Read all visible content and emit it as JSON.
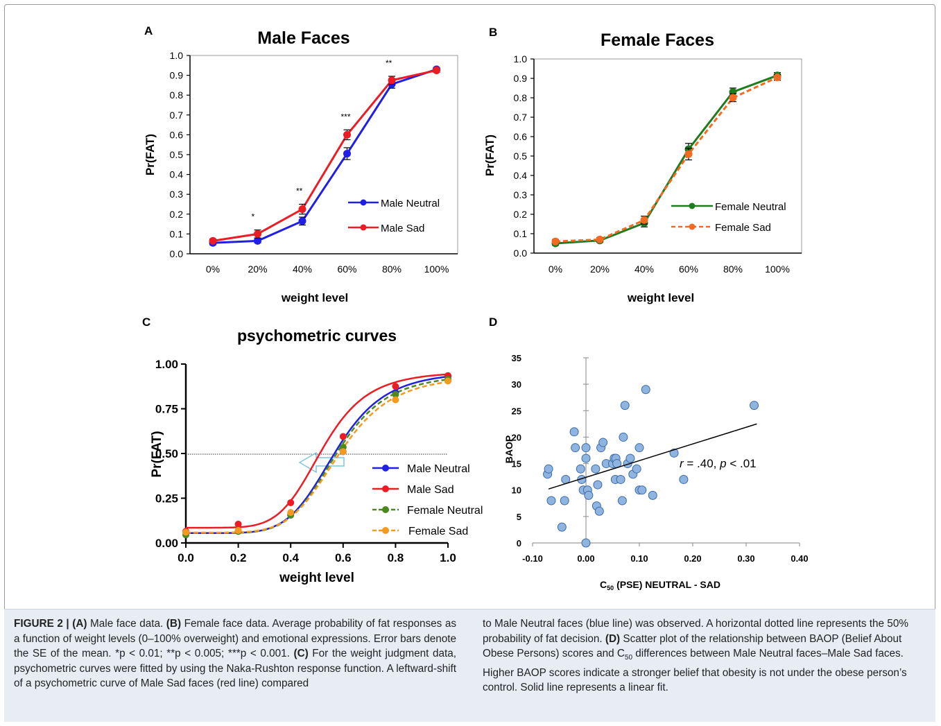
{
  "panels": {
    "A": {
      "letter": "A",
      "title": "Male Faces",
      "ylabel": "Pr(FAT)",
      "xlabel": "weight level",
      "yticks": [
        "0.0",
        "0.1",
        "0.2",
        "0.3",
        "0.4",
        "0.5",
        "0.6",
        "0.7",
        "0.8",
        "0.9",
        "1.0"
      ],
      "xticks": [
        "0%",
        "20%",
        "40%",
        "60%",
        "80%",
        "100%"
      ],
      "sig": [
        "",
        "*",
        "**",
        "***",
        "**",
        ""
      ],
      "legend": [
        "Male Neutral",
        "Male Sad"
      ]
    },
    "B": {
      "letter": "B",
      "title": "Female Faces",
      "ylabel": "Pr(FAT)",
      "xlabel": "weight level",
      "yticks": [
        "0.0",
        "0.1",
        "0.2",
        "0.3",
        "0.4",
        "0.5",
        "0.6",
        "0.7",
        "0.8",
        "0.9",
        "1.0"
      ],
      "xticks": [
        "0%",
        "20%",
        "40%",
        "60%",
        "80%",
        "100%"
      ],
      "legend": [
        "Female Neutral",
        "Female Sad"
      ]
    },
    "C": {
      "letter": "C",
      "title": "psychometric curves",
      "ylabel": "Pr(FAT)",
      "xlabel": "weight level",
      "yticks": [
        "0.00",
        "0.25",
        "0.50",
        "0.75",
        "1.00"
      ],
      "xticks": [
        "0.0",
        "0.2",
        "0.4",
        "0.6",
        "0.8",
        "1.0"
      ],
      "legend": [
        "Male Neutral",
        "Male Sad",
        "Female Neutral",
        "Female Sad"
      ]
    },
    "D": {
      "letter": "D",
      "ylabel": "BAOP",
      "xlabel_main": "C",
      "xlabel_sub": "50",
      "xlabel_rest": " (PSE) NEUTRAL - SAD",
      "yticks": [
        "0",
        "5",
        "10",
        "15",
        "20",
        "25",
        "30",
        "35"
      ],
      "xticks": [
        "-0.10",
        "0.00",
        "0.10",
        "0.20",
        "0.30",
        "0.40"
      ],
      "annot_r": "r",
      "annot_mid": " = .40,  ",
      "annot_p": "p",
      "annot_end": " < .01"
    }
  },
  "colors": {
    "male_neutral": "#1f1fe6",
    "male_sad": "#ec1c24",
    "female_neutral": "#1e7b1e",
    "female_sad": "#f26b22",
    "c_female_neutral": "#4a8a1c",
    "c_female_sad": "#f59a1f",
    "scatter_fill": "#8fb4e0",
    "scatter_edge": "#3b6aa8",
    "caption_bg": "#e8edf4"
  },
  "caption": {
    "fig_label": "FIGURE 2 |",
    "a_label": "(A)",
    "a_text": " Male face data. ",
    "b_label": "(B)",
    "b_text": " Female face data. Average probability of fat responses as a function of weight levels (0–100% overweight) and emotional expressions. Error bars denote the SE of the mean. *p < 0.01; **p < 0.005; ***p < 0.001. ",
    "c_label": "(C)",
    "c_text": " For the weight judgment data, psychometric curves were fitted by using the Naka-Rushton response function. A leftward-shift of a psychometric curve of Male Sad faces (red line) compared",
    "right_1": "to Male Neutral faces (blue line) was observed. A horizontal dotted line represents the 50% probability of fat decision. ",
    "d_label": "(D)",
    "right_2": " Scatter plot of the relationship between BAOP (Belief About Obese Persons) scores and C",
    "right_sub": "50",
    "right_3": " differences between Male Neutral faces–Male Sad faces. Higher BAOP scores indicate a stronger belief that obesity is not under the obese person’s control. Solid line represents a linear fit."
  },
  "chart_data": [
    {
      "type": "line",
      "title": "Male Faces",
      "xlabel": "weight level",
      "ylabel": "Pr(FAT)",
      "categories": [
        "0%",
        "20%",
        "40%",
        "60%",
        "80%",
        "100%"
      ],
      "ylim": [
        0,
        1.0
      ],
      "series": [
        {
          "name": "Male Neutral",
          "values": [
            0.055,
            0.065,
            0.165,
            0.505,
            0.855,
            0.93
          ],
          "err": [
            0.01,
            0.01,
            0.02,
            0.03,
            0.02,
            0.01
          ]
        },
        {
          "name": "Male Sad",
          "values": [
            0.065,
            0.1,
            0.225,
            0.6,
            0.875,
            0.925
          ],
          "err": [
            0.01,
            0.02,
            0.025,
            0.025,
            0.02,
            0.01
          ]
        }
      ],
      "significance": [
        "",
        "*",
        "**",
        "***",
        "**",
        ""
      ],
      "legend": "right"
    },
    {
      "type": "line",
      "title": "Female Faces",
      "xlabel": "weight level",
      "ylabel": "Pr(FAT)",
      "categories": [
        "0%",
        "20%",
        "40%",
        "60%",
        "80%",
        "100%"
      ],
      "ylim": [
        0,
        1.0
      ],
      "series": [
        {
          "name": "Female Neutral",
          "values": [
            0.05,
            0.065,
            0.155,
            0.535,
            0.83,
            0.915
          ],
          "err": [
            0.01,
            0.01,
            0.02,
            0.03,
            0.02,
            0.015
          ]
        },
        {
          "name": "Female Sad",
          "values": [
            0.06,
            0.07,
            0.17,
            0.51,
            0.8,
            0.905
          ],
          "err": [
            0.01,
            0.01,
            0.02,
            0.03,
            0.02,
            0.015
          ]
        }
      ],
      "legend": "right"
    },
    {
      "type": "line",
      "title": "psychometric curves",
      "xlabel": "weight level",
      "ylabel": "Pr(FAT)",
      "x": [
        0.0,
        0.2,
        0.4,
        0.6,
        0.8,
        1.0
      ],
      "xlim": [
        0,
        1.0
      ],
      "ylim": [
        0,
        1.0
      ],
      "reference_line_y": 0.5,
      "series": [
        {
          "name": "Male Neutral",
          "values": [
            0.06,
            0.065,
            0.16,
            0.51,
            0.84,
            0.93
          ],
          "fit": {
            "base": 0.055,
            "amp": 0.905,
            "c50": 0.57,
            "n": 6.0
          }
        },
        {
          "name": "Male Sad",
          "values": [
            0.065,
            0.105,
            0.225,
            0.595,
            0.875,
            0.935
          ],
          "fit": {
            "base": 0.085,
            "amp": 0.875,
            "c50": 0.52,
            "n": 6.0
          }
        },
        {
          "name": "Female Neutral",
          "values": [
            0.045,
            0.065,
            0.155,
            0.535,
            0.83,
            0.915
          ],
          "fit": {
            "base": 0.055,
            "amp": 0.89,
            "c50": 0.575,
            "n": 6.0
          }
        },
        {
          "name": "Female Sad",
          "values": [
            0.06,
            0.07,
            0.17,
            0.51,
            0.8,
            0.905
          ],
          "fit": {
            "base": 0.058,
            "amp": 0.88,
            "c50": 0.585,
            "n": 5.8
          }
        }
      ],
      "legend": "right"
    },
    {
      "type": "scatter",
      "xlabel": "C50 (PSE) NEUTRAL - SAD",
      "ylabel": "BAOP",
      "xlim": [
        -0.1,
        0.4
      ],
      "ylim": [
        0,
        35
      ],
      "fit_line": {
        "x": [
          -0.07,
          0.32
        ],
        "y": [
          10.2,
          22.5
        ]
      },
      "annotation": "r = .40,  p < .01",
      "points": [
        [
          -0.072,
          13
        ],
        [
          -0.07,
          14
        ],
        [
          -0.065,
          8
        ],
        [
          -0.045,
          3
        ],
        [
          -0.04,
          8
        ],
        [
          -0.038,
          12
        ],
        [
          -0.022,
          21
        ],
        [
          -0.02,
          18
        ],
        [
          -0.01,
          14
        ],
        [
          -0.008,
          12
        ],
        [
          -0.005,
          10
        ],
        [
          0.0,
          18
        ],
        [
          0.0,
          16
        ],
        [
          0.0,
          0
        ],
        [
          0.003,
          10
        ],
        [
          0.005,
          9
        ],
        [
          0.018,
          14
        ],
        [
          0.02,
          7
        ],
        [
          0.022,
          11
        ],
        [
          0.025,
          6
        ],
        [
          0.028,
          18
        ],
        [
          0.032,
          19
        ],
        [
          0.038,
          15
        ],
        [
          0.05,
          15
        ],
        [
          0.053,
          16
        ],
        [
          0.056,
          16
        ],
        [
          0.055,
          12
        ],
        [
          0.058,
          15
        ],
        [
          0.065,
          12
        ],
        [
          0.068,
          8
        ],
        [
          0.07,
          20
        ],
        [
          0.073,
          26
        ],
        [
          0.078,
          15
        ],
        [
          0.083,
          16
        ],
        [
          0.088,
          13
        ],
        [
          0.095,
          14
        ],
        [
          0.1,
          10
        ],
        [
          0.1,
          18
        ],
        [
          0.105,
          10
        ],
        [
          0.112,
          29
        ],
        [
          0.125,
          9
        ],
        [
          0.165,
          17
        ],
        [
          0.183,
          12
        ],
        [
          0.315,
          26
        ]
      ]
    }
  ]
}
